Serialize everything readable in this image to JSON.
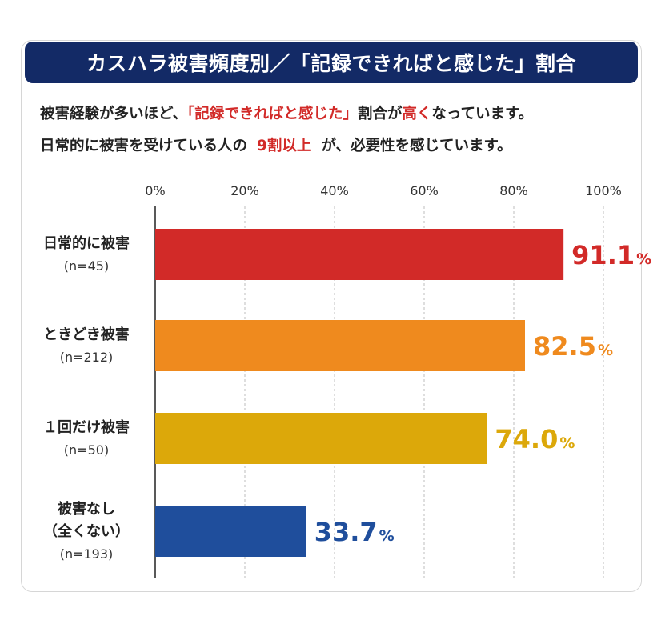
{
  "header": {
    "title": "カスハラ被害頻度別／「記録できればと感じた」割合"
  },
  "description": {
    "line1": {
      "prefix": "被害経験が多いほど、",
      "highlight1": "「記録できればと感じた」",
      "middle": "割合が",
      "highlight2": "高く",
      "suffix": "なっています。"
    },
    "line2": {
      "prefix": "日常的に被害を受けている人の",
      "highlight": "9割以上",
      "suffix": "が、必要性を感じています。"
    }
  },
  "chart_data": {
    "type": "bar",
    "orientation": "horizontal",
    "x_ticks": [
      "0%",
      "20%",
      "40%",
      "60%",
      "80%",
      "100%"
    ],
    "xlim": [
      0,
      100
    ],
    "grid": true,
    "value_suffix": "%",
    "categories": [
      {
        "label_lines": [
          "日常的に被害"
        ],
        "n": "(n=45)",
        "value": 91.1,
        "value_text": "91.1",
        "color": "#d22a28"
      },
      {
        "label_lines": [
          "ときどき被害"
        ],
        "n": "(n=212)",
        "value": 82.5,
        "value_text": "82.5",
        "color": "#ef8a1e"
      },
      {
        "label_lines": [
          "１回だけ被害"
        ],
        "n": "(n=50)",
        "value": 74.0,
        "value_text": "74.0",
        "color": "#dca80a"
      },
      {
        "label_lines": [
          "被害なし",
          "（全くない）"
        ],
        "n": "(n=193)",
        "value": 33.7,
        "value_text": "33.7",
        "color": "#1f4e9c"
      }
    ]
  }
}
